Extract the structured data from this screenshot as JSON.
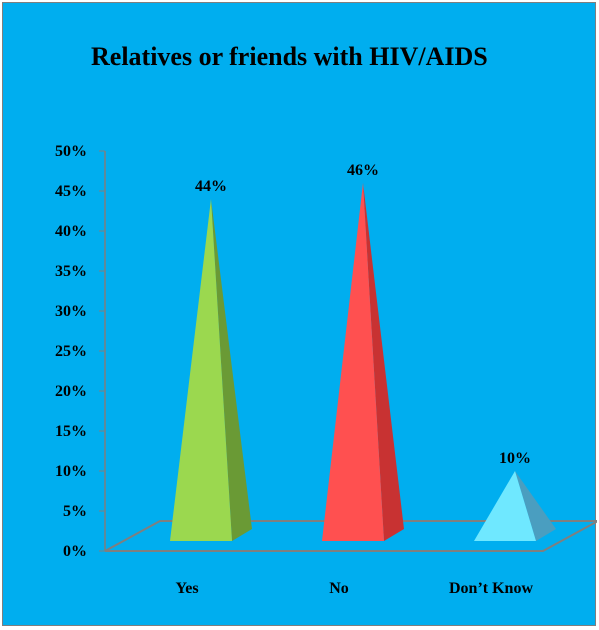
{
  "chart_data": {
    "type": "bar",
    "title": "Relatives or friends with HIV/AIDS",
    "categories": [
      "Yes",
      "No",
      "Don’t Know"
    ],
    "values": [
      44,
      46,
      10
    ],
    "value_labels": [
      "44%",
      "46%",
      "10%"
    ],
    "y_ticks": [
      "0%",
      "5%",
      "10%",
      "15%",
      "20%",
      "25%",
      "30%",
      "35%",
      "40%",
      "45%",
      "50%"
    ],
    "ylim": [
      0,
      50
    ],
    "grid": false,
    "legend": "none",
    "colors": {
      "background": "#00aeef",
      "bars": [
        {
          "front": "#9bd84f",
          "side": "#6a9a35"
        },
        {
          "front": "#ff5050",
          "side": "#c83232"
        },
        {
          "front": "#6fe8ff",
          "side": "#4a9ec0"
        }
      ],
      "axis": "#7f7f7f"
    }
  }
}
